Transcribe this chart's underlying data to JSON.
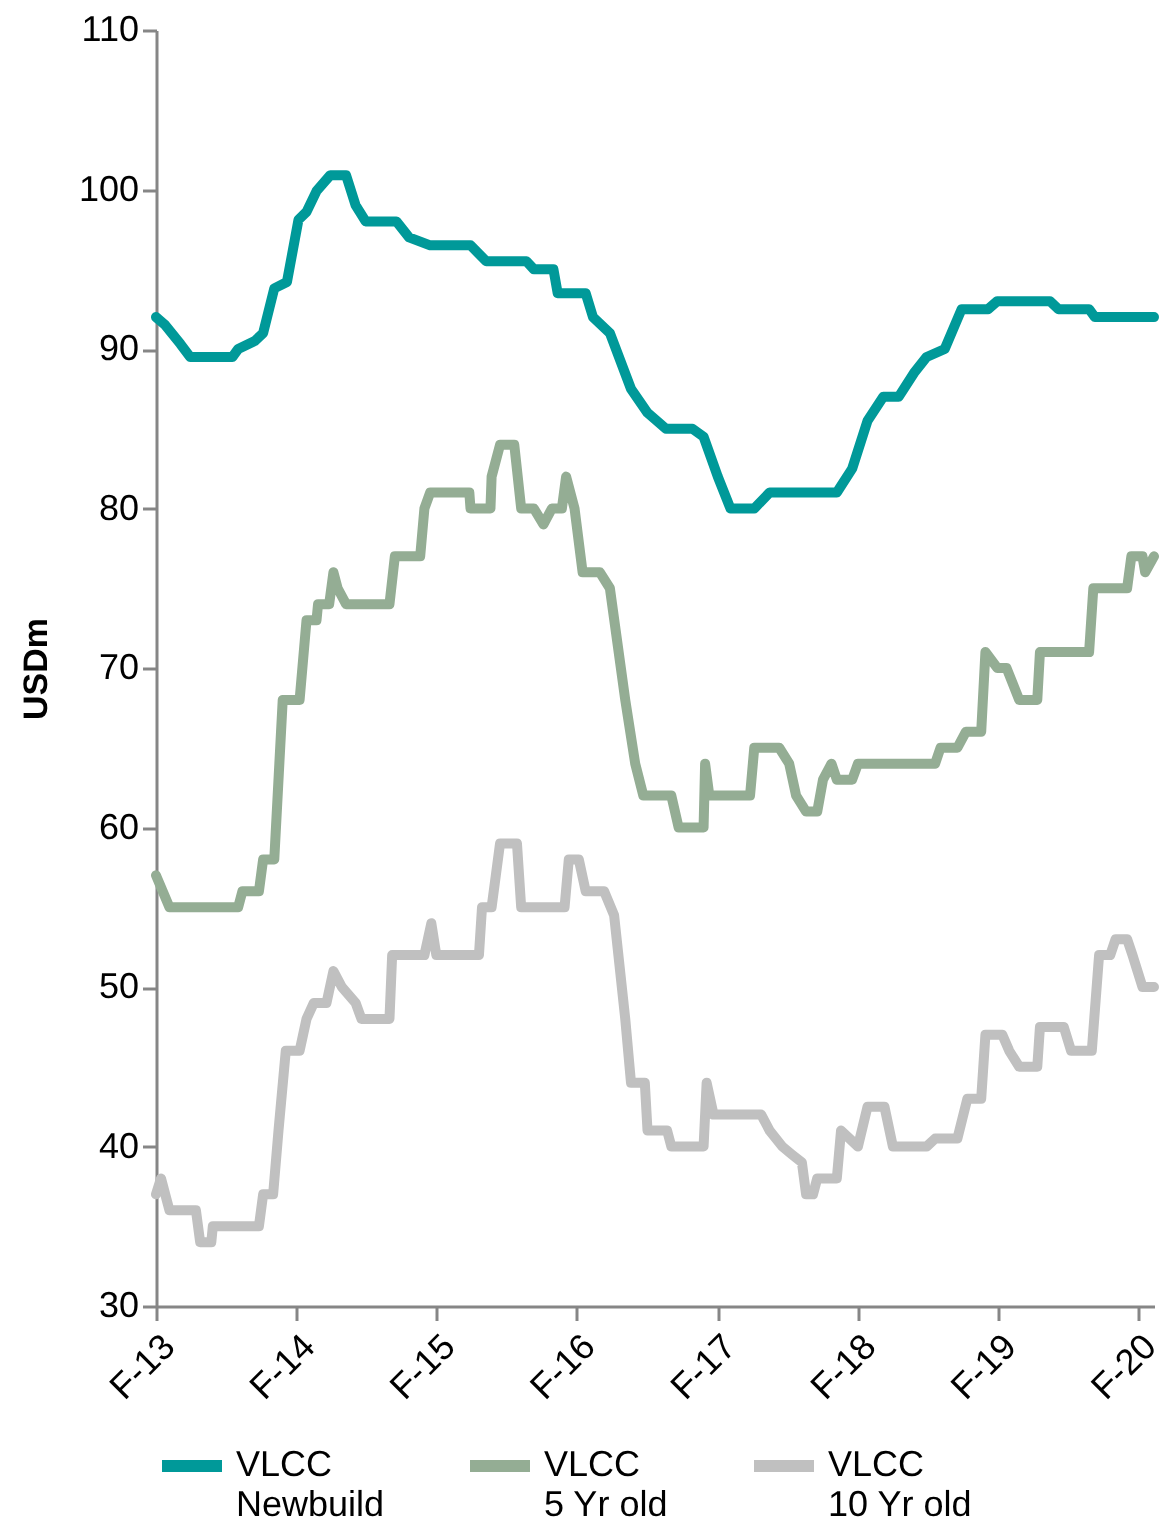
{
  "chart_data": {
    "type": "line",
    "ylabel": "USDm",
    "xlim": [
      "2013-02-01",
      "2020-03-15"
    ],
    "ylim": [
      30,
      110
    ],
    "xticks": [
      {
        "value": "2013-02-01",
        "label": "F-13"
      },
      {
        "value": "2014-02-01",
        "label": "F-14"
      },
      {
        "value": "2015-02-01",
        "label": "F-15"
      },
      {
        "value": "2016-02-01",
        "label": "F-16"
      },
      {
        "value": "2017-02-01",
        "label": "F-17"
      },
      {
        "value": "2018-02-01",
        "label": "F-18"
      },
      {
        "value": "2019-02-01",
        "label": "F-19"
      },
      {
        "value": "2020-02-01",
        "label": "F-20"
      }
    ],
    "yticks": [
      30,
      40,
      50,
      60,
      70,
      80,
      90,
      100,
      110
    ],
    "grid": false,
    "legend": "bottom",
    "marker": "none",
    "line_style": "solid",
    "series": [
      {
        "name": "VLCC Newbuild",
        "color": "#009999",
        "x": [
          "2013-02-01",
          "2013-02-25",
          "2013-04-06",
          "2013-05-01",
          "2013-08-19",
          "2013-09-03",
          "2013-10-16",
          "2013-11-07",
          "2013-12-06",
          "2014-01-08",
          "2014-02-07",
          "2014-02-28",
          "2014-03-26",
          "2014-05-01",
          "2014-06-11",
          "2014-07-06",
          "2014-08-01",
          "2014-10-20",
          "2014-11-22",
          "2015-01-16",
          "2015-05-01",
          "2015-06-11",
          "2015-09-24",
          "2015-10-13",
          "2015-12-03",
          "2015-12-14",
          "2016-02-25",
          "2016-03-15",
          "2016-04-28",
          "2016-06-22",
          "2016-08-04",
          "2016-09-21",
          "2016-11-29",
          "2016-12-28",
          "2017-02-03",
          "2017-03-08",
          "2017-05-09",
          "2017-06-18",
          "2017-12-10",
          "2018-01-19",
          "2018-02-28",
          "2018-04-10",
          "2018-05-20",
          "2018-06-29",
          "2018-08-01",
          "2018-09-17",
          "2018-10-31",
          "2019-01-08",
          "2019-02-01",
          "2019-06-18",
          "2019-07-10",
          "2019-09-28",
          "2019-10-13",
          "2020-03-15"
        ],
        "values": [
          92,
          91.5,
          90.3,
          89.5,
          89.5,
          90,
          90.5,
          91,
          93.8,
          94.2,
          98.1,
          98.6,
          99.9,
          100.9,
          100.9,
          99,
          98,
          98,
          97,
          96.5,
          96.5,
          95.5,
          95.5,
          95,
          95,
          93.5,
          93.5,
          92,
          91,
          87.5,
          86,
          85,
          85,
          84.5,
          82,
          80,
          80,
          81,
          81,
          82.5,
          85.5,
          87,
          87,
          88.5,
          89.5,
          90,
          92.5,
          92.5,
          93,
          93,
          92.5,
          92.5,
          92,
          92
        ]
      },
      {
        "name": "VLCC 5 Yr old",
        "color": "#94ad94",
        "x": [
          "2013-02-01",
          "2013-03-08",
          "2013-09-03",
          "2013-09-14",
          "2013-10-27",
          "2013-11-07",
          "2013-12-06",
          "2013-12-28",
          "2014-02-10",
          "2014-02-28",
          "2014-03-26",
          "2014-03-30",
          "2014-04-28",
          "2014-05-09",
          "2014-05-20",
          "2014-06-11",
          "2014-10-02",
          "2014-10-16",
          "2014-12-21",
          "2015-01-01",
          "2015-01-16",
          "2015-04-28",
          "2015-05-01",
          "2015-06-22",
          "2015-06-25",
          "2015-07-17",
          "2015-08-23",
          "2015-09-10",
          "2015-10-13",
          "2015-11-07",
          "2015-11-29",
          "2015-12-25",
          "2016-01-05",
          "2016-01-27",
          "2016-02-17",
          "2016-04-02",
          "2016-04-28",
          "2016-06-07",
          "2016-07-03",
          "2016-07-24",
          "2016-10-05",
          "2016-10-24",
          "2016-12-28",
          "2017-01-01",
          "2017-01-12",
          "2017-04-28",
          "2017-05-09",
          "2017-07-13",
          "2017-08-08",
          "2017-08-26",
          "2017-09-21",
          "2017-10-20",
          "2017-11-04",
          "2017-11-26",
          "2017-12-10",
          "2018-01-19",
          "2018-02-03",
          "2018-08-23",
          "2018-09-06",
          "2018-10-20",
          "2018-11-11",
          "2018-12-21",
          "2019-01-01",
          "2019-02-01",
          "2019-02-25",
          "2019-03-30",
          "2019-05-16",
          "2019-05-23",
          "2019-09-28",
          "2019-10-09",
          "2020-01-05",
          "2020-01-16",
          "2020-02-14",
          "2020-02-21",
          "2020-03-15"
        ],
        "values": [
          57,
          55,
          55,
          56,
          56,
          58,
          58,
          68,
          68,
          73,
          73,
          74,
          74,
          76,
          75,
          74,
          74,
          77,
          77,
          80,
          81,
          81,
          80,
          80,
          82,
          84,
          84,
          80,
          80,
          79,
          80,
          80,
          82,
          80,
          76,
          76,
          75,
          68,
          64,
          62,
          62,
          60,
          60,
          64,
          62,
          62,
          65,
          65,
          64,
          62,
          61,
          61,
          63,
          64,
          63,
          63,
          64,
          64,
          65,
          65,
          66,
          66,
          71,
          70,
          70,
          68,
          68,
          71,
          71,
          75,
          75,
          77,
          77,
          76,
          77
        ]
      },
      {
        "name": "VLCC 10 Yr old",
        "color": "#c0c0c0",
        "x": [
          "2013-02-01",
          "2013-02-14",
          "2013-03-08",
          "2013-05-16",
          "2013-05-27",
          "2013-06-25",
          "2013-06-29",
          "2013-10-27",
          "2013-11-07",
          "2013-12-03",
          "2013-12-17",
          "2014-01-05",
          "2014-02-10",
          "2014-02-28",
          "2014-03-19",
          "2014-04-21",
          "2014-05-09",
          "2014-05-31",
          "2014-07-06",
          "2014-07-21",
          "2014-10-02",
          "2014-10-09",
          "2015-01-01",
          "2015-01-19",
          "2015-02-01",
          "2015-05-23",
          "2015-05-31",
          "2015-06-25",
          "2015-07-06",
          "2015-07-17",
          "2015-08-30",
          "2015-09-10",
          "2016-01-01",
          "2016-01-12",
          "2016-02-07",
          "2016-02-25",
          "2016-04-13",
          "2016-05-09",
          "2016-06-07",
          "2016-06-22",
          "2016-07-28",
          "2016-08-04",
          "2016-09-24",
          "2016-10-05",
          "2016-12-28",
          "2017-01-05",
          "2017-01-23",
          "2017-05-27",
          "2017-06-18",
          "2017-07-21",
          "2017-08-15",
          "2017-09-10",
          "2017-09-21",
          "2017-10-09",
          "2017-10-20",
          "2017-12-10",
          "2017-12-21",
          "2018-02-03",
          "2018-02-28",
          "2018-04-13",
          "2018-05-05",
          "2018-08-01",
          "2018-08-23",
          "2018-10-20",
          "2018-11-15",
          "2018-12-21",
          "2019-01-01",
          "2019-02-14",
          "2019-03-04",
          "2019-03-30",
          "2019-05-16",
          "2019-05-23",
          "2019-07-24",
          "2019-08-12",
          "2019-10-05",
          "2019-10-24",
          "2019-11-22",
          "2019-12-06",
          "2020-01-05",
          "2020-01-19",
          "2020-02-14",
          "2020-03-15"
        ],
        "values": [
          37,
          38,
          36,
          36,
          34,
          34,
          35,
          35,
          37,
          37,
          41,
          46,
          46,
          48,
          49,
          49,
          51,
          50,
          49,
          48,
          48,
          52,
          52,
          54,
          52,
          52,
          55,
          55,
          57,
          59,
          59,
          55,
          55,
          58,
          58,
          56,
          56,
          54.5,
          48,
          44,
          44,
          41,
          41,
          40,
          40,
          44,
          42,
          42,
          41,
          40,
          39.5,
          39,
          37,
          37,
          38,
          38,
          41,
          40,
          42.5,
          42.5,
          40,
          40,
          40.5,
          40.5,
          43,
          43,
          47,
          47,
          46,
          45,
          45,
          47.5,
          47.5,
          46,
          46,
          52,
          52,
          53,
          53,
          52,
          50,
          50
        ]
      }
    ]
  }
}
